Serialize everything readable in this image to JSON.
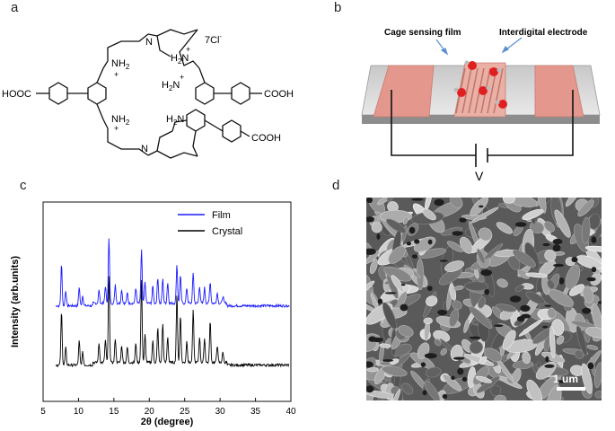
{
  "panel_a": {
    "label": "a",
    "counter_ion": "7Cl",
    "counter_sup": "-",
    "groups": {
      "cooh_left": "HOOC",
      "cooh_right_top": "COOH",
      "cooh_right_bottom": "COOH",
      "nh2": "NH",
      "sub2": "2",
      "h2n": "H",
      "n": "N",
      "plus": "+"
    }
  },
  "panel_b": {
    "label": "b",
    "film_label": "Cage sensing film",
    "electrode_label": "Interdigital electrode",
    "voltage_label": "V"
  },
  "panel_c": {
    "label": "c",
    "ylabel": "Intensity (arb.units)",
    "xlabel": "2θ (degree)"
  },
  "panel_d": {
    "label": "d",
    "scale_label": "1 um"
  },
  "chart_data": {
    "type": "line",
    "xlabel": "2θ (degree)",
    "ylabel": "Intensity (arb.units)",
    "xlim": [
      5,
      40
    ],
    "xticks": [
      5,
      10,
      15,
      20,
      25,
      30,
      35,
      40
    ],
    "legend_position": "top-right",
    "series": [
      {
        "name": "Film",
        "color": "#1a1aff",
        "baseline": 0.55,
        "peaks": [
          [
            7.6,
            0.48
          ],
          [
            8.2,
            0.18
          ],
          [
            10.1,
            0.22
          ],
          [
            10.6,
            0.12
          ],
          [
            12.9,
            0.15
          ],
          [
            13.8,
            0.2
          ],
          [
            14.3,
            0.75
          ],
          [
            15.2,
            0.22
          ],
          [
            16.1,
            0.16
          ],
          [
            16.9,
            0.12
          ],
          [
            18.1,
            0.18
          ],
          [
            18.9,
            0.62
          ],
          [
            19.4,
            0.25
          ],
          [
            20.5,
            0.2
          ],
          [
            21.2,
            0.3
          ],
          [
            21.9,
            0.28
          ],
          [
            22.6,
            0.24
          ],
          [
            23.9,
            0.45
          ],
          [
            24.4,
            0.32
          ],
          [
            25.3,
            0.18
          ],
          [
            26.2,
            0.35
          ],
          [
            27.1,
            0.2
          ],
          [
            27.8,
            0.18
          ],
          [
            28.6,
            0.25
          ],
          [
            29.6,
            0.12
          ],
          [
            30.4,
            0.08
          ]
        ]
      },
      {
        "name": "Crystal",
        "color": "#000000",
        "baseline": 0.0,
        "peaks": [
          [
            7.6,
            0.62
          ],
          [
            8.2,
            0.2
          ],
          [
            10.1,
            0.28
          ],
          [
            10.6,
            0.15
          ],
          [
            12.9,
            0.22
          ],
          [
            13.8,
            0.26
          ],
          [
            14.3,
            1.0
          ],
          [
            15.2,
            0.28
          ],
          [
            16.1,
            0.2
          ],
          [
            16.9,
            0.18
          ],
          [
            18.1,
            0.22
          ],
          [
            18.9,
            0.95
          ],
          [
            19.4,
            0.32
          ],
          [
            20.5,
            0.25
          ],
          [
            21.2,
            0.4
          ],
          [
            21.9,
            0.45
          ],
          [
            22.6,
            0.3
          ],
          [
            23.9,
            0.78
          ],
          [
            24.4,
            0.55
          ],
          [
            25.3,
            0.25
          ],
          [
            26.2,
            0.6
          ],
          [
            27.1,
            0.3
          ],
          [
            27.8,
            0.28
          ],
          [
            28.6,
            0.48
          ],
          [
            29.6,
            0.2
          ],
          [
            30.4,
            0.12
          ]
        ]
      }
    ]
  }
}
